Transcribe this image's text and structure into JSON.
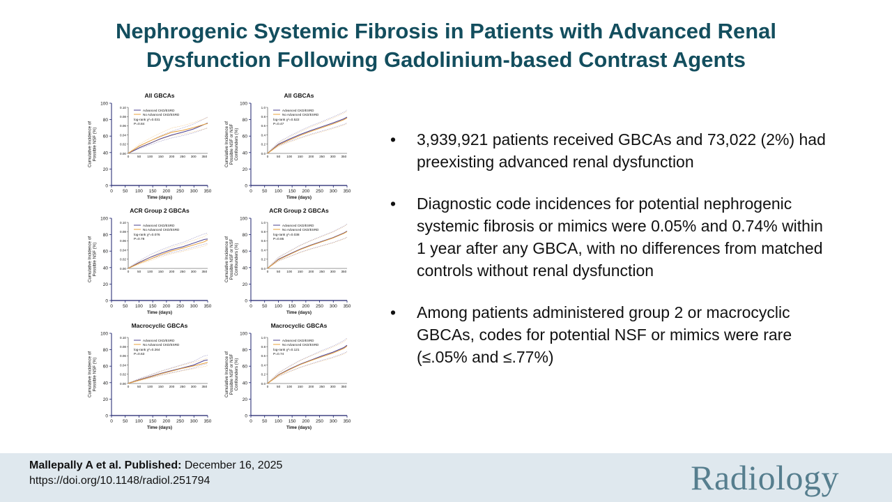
{
  "title": {
    "line1": "Nephrogenic Systemic Fibrosis in Patients with Advanced Renal",
    "line2": "Dysfunction Following Gadolinium-based Contrast Agents"
  },
  "colors": {
    "title": "#134e5e",
    "footer_bg": "#dfe8ee",
    "logo": "#567e8e",
    "series_advanced": "#4a3f8f",
    "series_no_advanced": "#e8a03a",
    "axis": "#1a1f6b"
  },
  "bullets": [
    "3,939,921 patients received GBCAs and 73,022 (2%) had preexisting advanced renal dysfunction",
    "Diagnostic code incidences for potential nephrogenic systemic fibrosis or mimics were 0.05% and 0.74% within 1 year after any GBCA, with no differences from matched controls without renal dysfunction",
    "Among patients administered group 2 or macrocyclic GBCAs, codes for potential NSF or mimics were rare (≤.05% and ≤.77%)"
  ],
  "footer": {
    "authors": "Mallepally A et al. Published:",
    "date": " December 16, 2025",
    "doi": "https://doi.org/10.1148/radiol.251794",
    "journal": "Radiology"
  },
  "chart_data": [
    {
      "type": "line",
      "title": "All GBCAs",
      "xlabel": "Time (days)",
      "ylabel": "Cumulative Incidence of Possible NSF (%)",
      "xlim": [
        0,
        350
      ],
      "ylim": [
        0,
        100
      ],
      "x_ticks": [
        0,
        50,
        100,
        150,
        200,
        250,
        300,
        350
      ],
      "y_ticks": [
        0,
        20,
        40,
        60,
        80,
        100
      ],
      "inset": {
        "xlim": [
          0,
          365
        ],
        "ylim": [
          0,
          0.1
        ],
        "y_ticks": [
          "0.00",
          "0.02",
          "0.04",
          "0.06",
          "0.08",
          "0.10"
        ],
        "x_ticks": [
          0,
          50,
          100,
          150,
          200,
          250,
          300,
          350
        ],
        "legend": [
          "Advanced CKD/ESRD",
          "No Advanced CKD/ESRD"
        ],
        "stat": "log-rank χ²=0.031",
        "p": "P=0.84",
        "x": [
          0,
          50,
          100,
          150,
          200,
          250,
          300,
          350,
          365
        ],
        "series": [
          {
            "name": "Advanced CKD/ESRD",
            "values": [
              0,
              0.012,
              0.022,
              0.032,
              0.04,
              0.046,
              0.053,
              0.063,
              0.066
            ]
          },
          {
            "name": "No Advanced CKD/ESRD",
            "values": [
              0,
              0.016,
              0.027,
              0.037,
              0.046,
              0.05,
              0.056,
              0.063,
              0.065
            ]
          }
        ]
      }
    },
    {
      "type": "line",
      "title": "All GBCAs",
      "xlabel": "Time (days)",
      "ylabel": "Cumulative Incidence of Possible NSF or NSF Confounders (%)",
      "xlim": [
        0,
        350
      ],
      "ylim": [
        0,
        100
      ],
      "x_ticks": [
        0,
        50,
        100,
        150,
        200,
        250,
        300,
        350
      ],
      "y_ticks": [
        0,
        20,
        40,
        60,
        80,
        100
      ],
      "inset": {
        "xlim": [
          0,
          365
        ],
        "ylim": [
          0,
          1
        ],
        "y_ticks": [
          "0.0",
          "0.2",
          "0.4",
          "0.6",
          "0.8",
          "1.0"
        ],
        "x_ticks": [
          0,
          50,
          100,
          150,
          200,
          250,
          300,
          350
        ],
        "legend": [
          "Advanced CKD/ESRD",
          "No Advanced CKD/ESRD"
        ],
        "stat": "log-rank χ²=0.522",
        "p": "P=0.47",
        "x": [
          0,
          50,
          100,
          150,
          200,
          250,
          300,
          350,
          365
        ],
        "series": [
          {
            "name": "Advanced CKD/ESRD",
            "values": [
              0,
              0.2,
              0.31,
              0.41,
              0.5,
              0.58,
              0.66,
              0.75,
              0.79
            ]
          },
          {
            "name": "No Advanced CKD/ESRD",
            "values": [
              0,
              0.18,
              0.29,
              0.39,
              0.48,
              0.56,
              0.64,
              0.73,
              0.77
            ]
          }
        ]
      }
    },
    {
      "type": "line",
      "title": "ACR Group 2 GBCAs",
      "xlabel": "Time (days)",
      "ylabel": "Cumulative Incidence of Possible NSF (%)",
      "xlim": [
        0,
        350
      ],
      "ylim": [
        0,
        100
      ],
      "x_ticks": [
        0,
        50,
        100,
        150,
        200,
        250,
        300,
        350
      ],
      "y_ticks": [
        0,
        20,
        40,
        60,
        80,
        100
      ],
      "inset": {
        "xlim": [
          0,
          365
        ],
        "ylim": [
          0,
          0.1
        ],
        "y_ticks": [
          "0.00",
          "0.02",
          "0.04",
          "0.06",
          "0.08",
          "0.10"
        ],
        "x_ticks": [
          0,
          50,
          100,
          150,
          200,
          250,
          300,
          350
        ],
        "legend": [
          "Advanced CKD/ESRD",
          "No Advanced CKD/ESRD"
        ],
        "stat": "log-rank χ²=0.076",
        "p": "P=0.78",
        "x": [
          0,
          50,
          100,
          150,
          200,
          250,
          300,
          350,
          365
        ],
        "series": [
          {
            "name": "Advanced CKD/ESRD",
            "values": [
              0,
              0.013,
              0.024,
              0.033,
              0.041,
              0.047,
              0.055,
              0.063,
              0.064
            ]
          },
          {
            "name": "No Advanced CKD/ESRD",
            "values": [
              0,
              0.011,
              0.02,
              0.03,
              0.038,
              0.044,
              0.051,
              0.058,
              0.062
            ]
          }
        ]
      }
    },
    {
      "type": "line",
      "title": "ACR Group 2 GBCAs",
      "xlabel": "Time (days)",
      "ylabel": "Cumulative Incidence of Possible NSF or NSF Confounders (%)",
      "xlim": [
        0,
        350
      ],
      "ylim": [
        0,
        100
      ],
      "x_ticks": [
        0,
        50,
        100,
        150,
        200,
        250,
        300,
        350
      ],
      "y_ticks": [
        0,
        20,
        40,
        60,
        80,
        100
      ],
      "inset": {
        "xlim": [
          0,
          365
        ],
        "ylim": [
          0,
          1
        ],
        "y_ticks": [
          "0.0",
          "0.2",
          "0.4",
          "0.6",
          "0.8",
          "1.0"
        ],
        "x_ticks": [
          0,
          50,
          100,
          150,
          200,
          250,
          300,
          350
        ],
        "legend": [
          "Advanced CKD/ESRD",
          "No Advanced CKD/ESRD"
        ],
        "stat": "log-rank χ²=0.038",
        "p": "P=0.85",
        "x": [
          0,
          50,
          100,
          150,
          200,
          250,
          300,
          350,
          365
        ],
        "series": [
          {
            "name": "Advanced CKD/ESRD",
            "values": [
              0,
              0.2,
              0.31,
              0.42,
              0.51,
              0.59,
              0.67,
              0.77,
              0.81
            ]
          },
          {
            "name": "No Advanced CKD/ESRD",
            "values": [
              0,
              0.19,
              0.3,
              0.41,
              0.5,
              0.58,
              0.66,
              0.76,
              0.8
            ]
          }
        ]
      }
    },
    {
      "type": "line",
      "title": "Macrocyclic GBCAs",
      "xlabel": "Time (days)",
      "ylabel": "Cumulative Incidence of Possible NSF (%)",
      "xlim": [
        0,
        350
      ],
      "ylim": [
        0,
        100
      ],
      "x_ticks": [
        0,
        50,
        100,
        150,
        200,
        250,
        300,
        350
      ],
      "y_ticks": [
        0,
        20,
        40,
        60,
        80,
        100
      ],
      "inset": {
        "xlim": [
          0,
          365
        ],
        "ylim": [
          0,
          0.1
        ],
        "y_ticks": [
          "0.00",
          "0.02",
          "0.04",
          "0.06",
          "0.08",
          "0.10"
        ],
        "x_ticks": [
          0,
          50,
          100,
          150,
          200,
          250,
          300,
          350
        ],
        "legend": [
          "Advanced CKD/ESRD",
          "No Advanced CKD/ESRD"
        ],
        "stat": "log-rank χ²=0.264",
        "p": "P=0.63",
        "x": [
          0,
          50,
          100,
          150,
          200,
          250,
          300,
          350,
          365
        ],
        "series": [
          {
            "name": "Advanced CKD/ESRD",
            "values": [
              0,
              0.008,
              0.015,
              0.022,
              0.028,
              0.034,
              0.04,
              0.05,
              0.051
            ]
          },
          {
            "name": "No Advanced CKD/ESRD",
            "values": [
              0,
              0.007,
              0.014,
              0.021,
              0.027,
              0.033,
              0.038,
              0.044,
              0.046
            ]
          }
        ]
      }
    },
    {
      "type": "line",
      "title": "Macrocyclic GBCAs",
      "xlabel": "Time (days)",
      "ylabel": "Cumulative Incidence of Possible NSF or NSF Confounders (%)",
      "xlim": [
        0,
        350
      ],
      "ylim": [
        0,
        100
      ],
      "x_ticks": [
        0,
        50,
        100,
        150,
        200,
        250,
        300,
        350
      ],
      "y_ticks": [
        0,
        20,
        40,
        60,
        80,
        100
      ],
      "inset": {
        "xlim": [
          0,
          365
        ],
        "ylim": [
          0,
          1
        ],
        "y_ticks": [
          "0.0",
          "0.2",
          "0.4",
          "0.6",
          "0.8",
          "1.0"
        ],
        "x_ticks": [
          0,
          50,
          100,
          150,
          200,
          250,
          300,
          350
        ],
        "legend": [
          "Advanced CKD/ESRD",
          "No Advanced CKD/ESRD"
        ],
        "stat": "log-rank χ²=0.121",
        "p": "P=0.74",
        "x": [
          0,
          50,
          100,
          150,
          200,
          250,
          300,
          350,
          365
        ],
        "series": [
          {
            "name": "Advanced CKD/ESRD",
            "values": [
              0,
              0.19,
              0.31,
              0.42,
              0.51,
              0.6,
              0.68,
              0.78,
              0.83
            ]
          },
          {
            "name": "No Advanced CKD/ESRD",
            "values": [
              0,
              0.18,
              0.3,
              0.41,
              0.5,
              0.58,
              0.66,
              0.76,
              0.81
            ]
          }
        ]
      }
    }
  ]
}
